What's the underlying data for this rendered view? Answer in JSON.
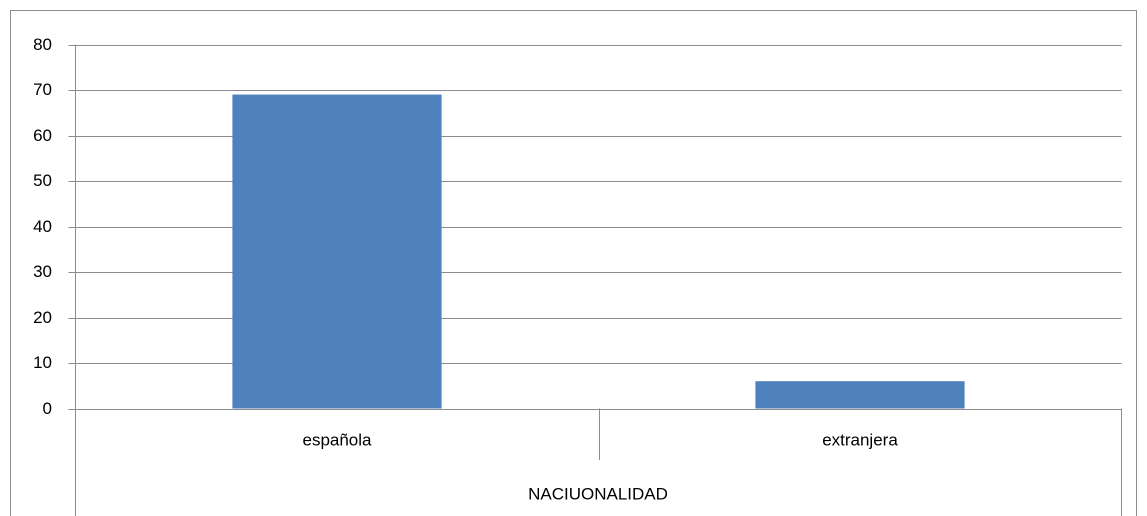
{
  "chart_data": {
    "type": "bar",
    "categories": [
      "española",
      "extranjera"
    ],
    "values": [
      69,
      6
    ],
    "color": "#4f81bd",
    "ylim": [
      0,
      80
    ],
    "yticks": [
      0,
      10,
      20,
      30,
      40,
      50,
      60,
      70,
      80
    ],
    "grid": true,
    "xlabel": "NACIUONALIDAD"
  }
}
